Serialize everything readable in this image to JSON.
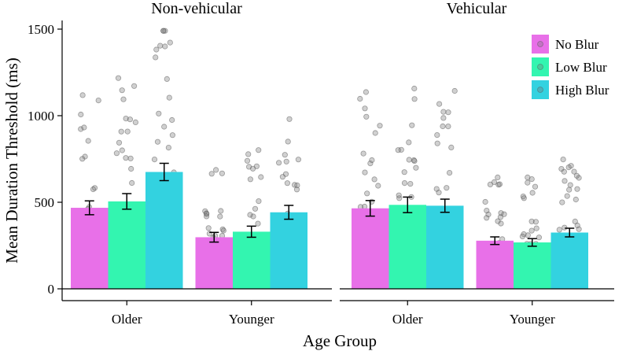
{
  "chart_data": {
    "type": "bar",
    "ylabel": "Mean Duration Threshold (ms)",
    "xlabel": "Age Group",
    "ylim": [
      0,
      1500
    ],
    "yticks": [
      0,
      500,
      1000,
      1500
    ],
    "categories": [
      "Older",
      "Younger"
    ],
    "series_names": [
      "No Blur",
      "Low Blur",
      "High Blur"
    ],
    "colors": {
      "No Blur": "#E870E8",
      "Low Blur": "#33F5B0",
      "High Blur": "#33D2E0"
    },
    "legend": {
      "position": "top-right",
      "items": [
        {
          "label": "No Blur",
          "color": "#E870E8"
        },
        {
          "label": "Low Blur",
          "color": "#33F5B0"
        },
        {
          "label": "High Blur",
          "color": "#33D2E0"
        }
      ]
    },
    "panels": [
      {
        "title": "Non-vehicular",
        "groups": [
          {
            "category": "Older",
            "bars": [
              {
                "series": "No Blur",
                "mean": 468,
                "se": 40
              },
              {
                "series": "Low Blur",
                "mean": 505,
                "se": 45
              },
              {
                "series": "High Blur",
                "mean": 675,
                "se": 50
              }
            ]
          },
          {
            "category": "Younger",
            "bars": [
              {
                "series": "No Blur",
                "mean": 298,
                "se": 28
              },
              {
                "series": "Low Blur",
                "mean": 330,
                "se": 32
              },
              {
                "series": "High Blur",
                "mean": 442,
                "se": 40
              }
            ]
          }
        ]
      },
      {
        "title": "Vehicular",
        "groups": [
          {
            "category": "Older",
            "bars": [
              {
                "series": "No Blur",
                "mean": 465,
                "se": 45
              },
              {
                "series": "Low Blur",
                "mean": 485,
                "se": 45
              },
              {
                "series": "High Blur",
                "mean": 480,
                "se": 38
              }
            ]
          },
          {
            "category": "Younger",
            "bars": [
              {
                "series": "No Blur",
                "mean": 278,
                "se": 22
              },
              {
                "series": "Low Blur",
                "mean": 268,
                "se": 22
              },
              {
                "series": "High Blur",
                "mean": 325,
                "se": 25
              }
            ]
          }
        ]
      }
    ]
  }
}
